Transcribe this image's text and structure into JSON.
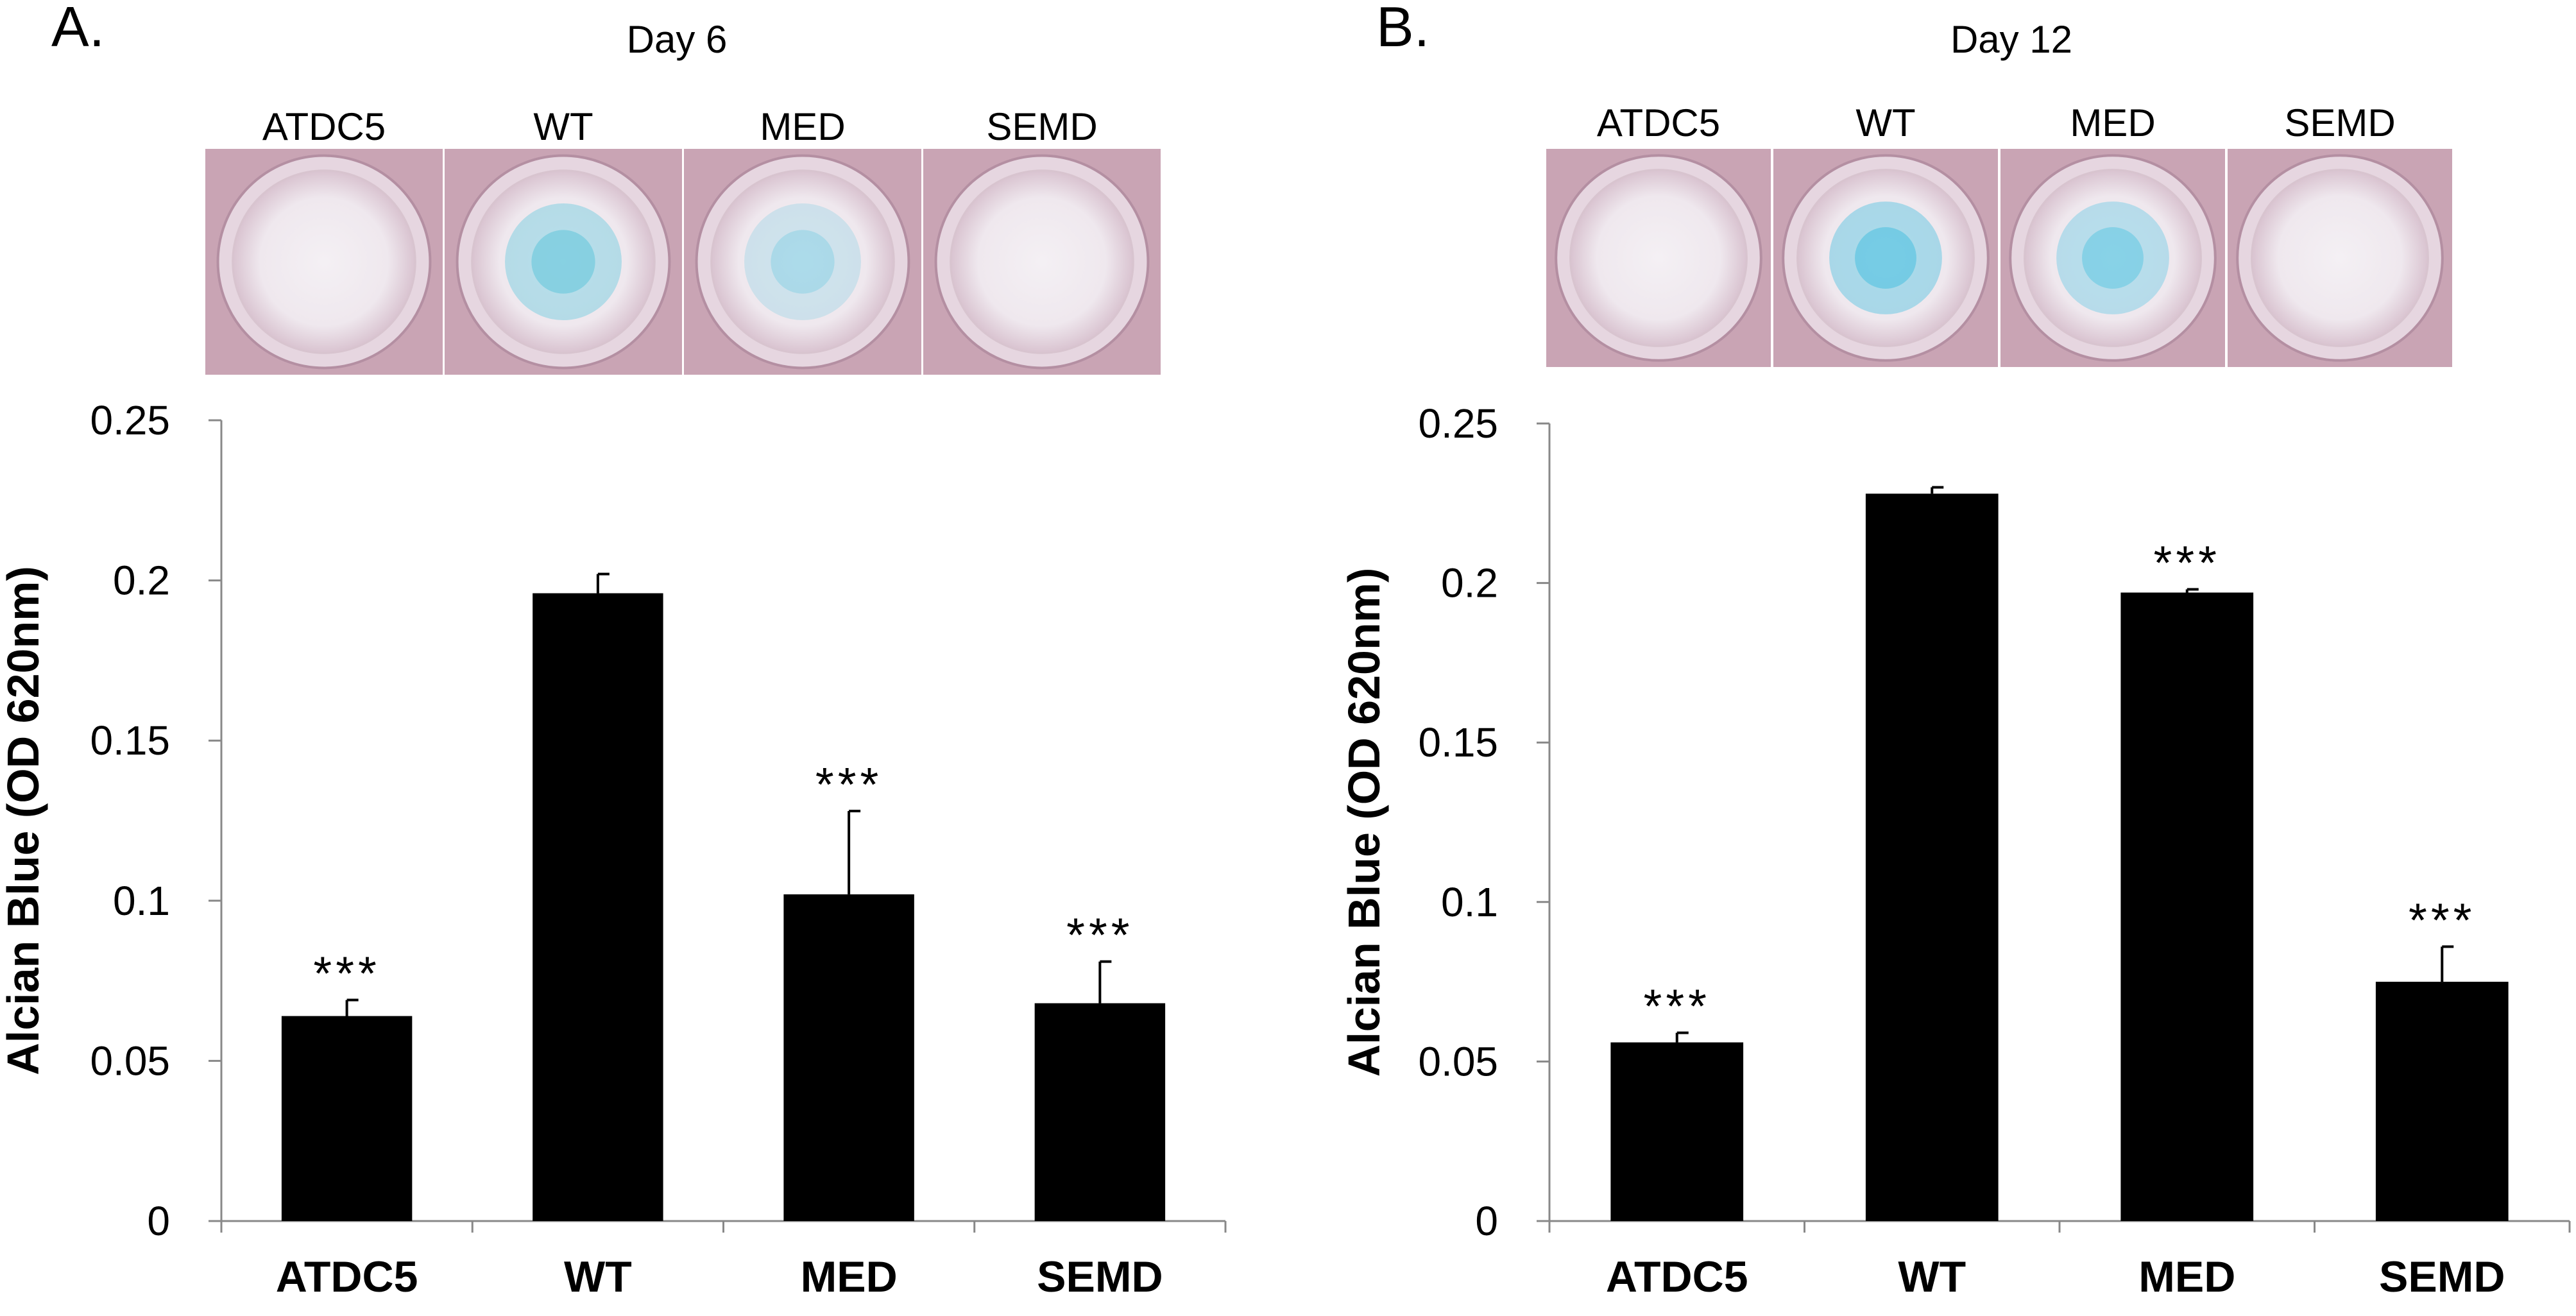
{
  "figure": {
    "panels": [
      {
        "letter": "A.",
        "day_label": "Day 6"
      },
      {
        "letter": "B.",
        "day_label": "Day 12"
      }
    ],
    "well_images": [
      {
        "label": "ATDC5",
        "stain": "#f4f1f5",
        "stain_strength": 0.0
      },
      {
        "label": "WT",
        "stain": "#62c6dc",
        "stain_strength": 0.75
      },
      {
        "label": "MED",
        "stain": "#66c8e0",
        "stain_strength": 0.45
      },
      {
        "label": "SEMD",
        "stain": "#f4f1f5",
        "stain_strength": 0.0
      }
    ],
    "well_images_b": [
      {
        "label": "ATDC5",
        "stain": "#f4f1f5",
        "stain_strength": 0.0
      },
      {
        "label": "WT",
        "stain": "#58c4e2",
        "stain_strength": 0.85
      },
      {
        "label": "MED",
        "stain": "#5cc6e2",
        "stain_strength": 0.7
      },
      {
        "label": "SEMD",
        "stain": "#f4f1f5",
        "stain_strength": 0.0
      }
    ],
    "colors": {
      "bar": "#000000",
      "axis": "#888888",
      "plate": "#c9a4b4",
      "text": "#000000"
    }
  },
  "chart_data": [
    {
      "type": "bar",
      "title": "Day 6",
      "panel": "A.",
      "xlabel": "",
      "ylabel": "Alcian Blue (OD 620nm)",
      "categories": [
        "ATDC5",
        "WT",
        "MED",
        "SEMD"
      ],
      "values": [
        0.064,
        0.196,
        0.102,
        0.068
      ],
      "error_bars": [
        0.005,
        0.006,
        0.026,
        0.013
      ],
      "significance": [
        "***",
        "",
        "***",
        "***"
      ],
      "ylim": [
        0,
        0.25
      ],
      "yticks": [
        0,
        0.05,
        0.1,
        0.15,
        0.2,
        0.25
      ],
      "ytick_labels": [
        "0",
        "0.05",
        "0.1",
        "0.15",
        "0.2",
        "0.25"
      ],
      "grid": false
    },
    {
      "type": "bar",
      "title": "Day 12",
      "panel": "B.",
      "xlabel": "",
      "ylabel": "Alcian Blue (OD 620nm)",
      "categories": [
        "ATDC5",
        "WT",
        "MED",
        "SEMD"
      ],
      "values": [
        0.056,
        0.228,
        0.197,
        0.075
      ],
      "error_bars": [
        0.003,
        0.002,
        0.001,
        0.011
      ],
      "significance": [
        "***",
        "",
        "***",
        "***"
      ],
      "ylim": [
        0,
        0.25
      ],
      "yticks": [
        0,
        0.05,
        0.1,
        0.15,
        0.2,
        0.25
      ],
      "ytick_labels": [
        "0",
        "0.05",
        "0.1",
        "0.15",
        "0.2",
        "0.25"
      ],
      "grid": false
    }
  ]
}
